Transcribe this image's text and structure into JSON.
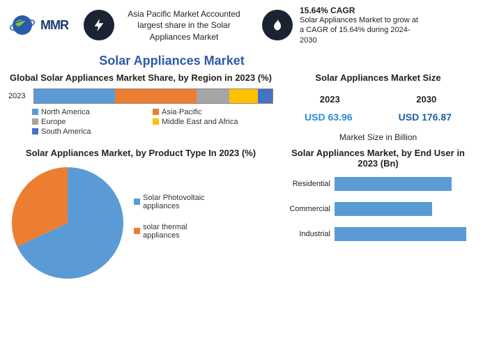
{
  "header": {
    "logo_text": "MMR",
    "fact1": "Asia Pacific Market Accounted largest share in the Solar Appliances Market",
    "cagr_title": "15.64% CAGR",
    "cagr_sub": "Solar Appliances Market to grow at a CAGR of 15.64% during 2024-2030"
  },
  "main_title": "Solar Appliances Market",
  "region_chart": {
    "title": "Global Solar Appliances Market Share, by Region in 2023 (%)",
    "year_label": "2023",
    "segments": [
      {
        "label": "North America",
        "pct": 34,
        "color": "#5a9bd5"
      },
      {
        "label": "Asia-Pacific",
        "pct": 34,
        "color": "#ed7d31"
      },
      {
        "label": "Europe",
        "pct": 14,
        "color": "#a5a5a5"
      },
      {
        "label": "Middle East and Africa",
        "pct": 12,
        "color": "#ffc000"
      },
      {
        "label": "South America",
        "pct": 6,
        "color": "#4472c4"
      }
    ]
  },
  "size_block": {
    "title": "Solar Appliances Market Size",
    "year1": "2023",
    "year2": "2030",
    "val1": "USD 63.96",
    "val2": "USD 176.87",
    "val1_color": "#2e8bd6",
    "val2_color": "#1f5fa8",
    "caption": "Market Size in Billion"
  },
  "pie_chart": {
    "title": "Solar Appliances Market, by Product Type In 2023 (%)",
    "slices": [
      {
        "label": "Solar Photovoltaic appliances",
        "pct": 68,
        "color": "#5a9bd5"
      },
      {
        "label": "solar thermal appliances",
        "pct": 32,
        "color": "#ed7d31"
      }
    ]
  },
  "hbar_chart": {
    "title": "Solar Appliances Market, by End User in 2023 (Bn)",
    "max": 30,
    "bars": [
      {
        "label": "Residential",
        "value": 24,
        "color": "#5a9bd5"
      },
      {
        "label": "Commercial",
        "value": 20,
        "color": "#5a9bd5"
      },
      {
        "label": "Industrial",
        "value": 27,
        "color": "#5a9bd5"
      }
    ]
  }
}
